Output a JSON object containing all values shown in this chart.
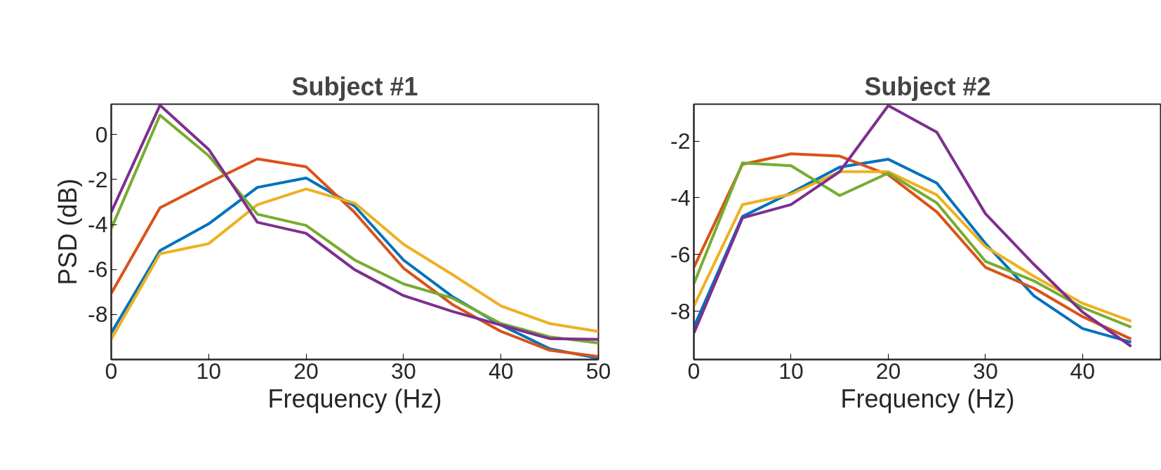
{
  "chart_data": [
    {
      "type": "line",
      "title": "Subject #1",
      "xlabel": "Frequency (Hz)",
      "ylabel": "PSD (dB)",
      "x": [
        0,
        5,
        10,
        15,
        20,
        25,
        30,
        35,
        40,
        45,
        50
      ],
      "xlim": [
        0,
        50
      ],
      "ylim": [
        -10,
        1.35
      ],
      "xticks": [
        0,
        10,
        20,
        30,
        40,
        50
      ],
      "yticks": [
        -8,
        -6,
        -4,
        -2,
        0
      ],
      "grid": false,
      "line_style": "solid",
      "marker": "none",
      "series": [
        {
          "color": "#0072bd",
          "values": [
            -8.82,
            -5.16,
            -3.97,
            -2.35,
            -1.93,
            -3.19,
            -5.58,
            -7.2,
            -8.47,
            -9.52,
            -9.95
          ]
        },
        {
          "color": "#d95319",
          "values": [
            -7.06,
            -3.26,
            -2.14,
            -1.08,
            -1.43,
            -3.47,
            -5.94,
            -7.55,
            -8.75,
            -9.59,
            -9.87
          ]
        },
        {
          "color": "#edb120",
          "values": [
            -9.1,
            -5.3,
            -4.85,
            -3.12,
            -2.42,
            -3.05,
            -4.88,
            -6.22,
            -7.62,
            -8.4,
            -8.75
          ]
        },
        {
          "color": "#77ac30",
          "values": [
            -4.18,
            0.86,
            -0.94,
            -3.54,
            -4.04,
            -5.58,
            -6.64,
            -7.27,
            -8.4,
            -8.99,
            -9.27
          ]
        },
        {
          "color": "#7e2f8e",
          "values": [
            -3.45,
            1.3,
            -0.66,
            -3.9,
            -4.39,
            -6.01,
            -7.16,
            -7.86,
            -8.47,
            -9.07,
            -9.1
          ]
        }
      ]
    },
    {
      "type": "line",
      "title": "Subject #2",
      "xlabel": "Frequency (Hz)",
      "x": [
        0,
        5,
        10,
        15,
        20,
        25,
        30,
        35,
        40,
        45
      ],
      "xlim": [
        0,
        48.1
      ],
      "ylim": [
        -9.7,
        -0.7
      ],
      "xticks": [
        0,
        10,
        20,
        30,
        40
      ],
      "yticks": [
        -8,
        -6,
        -4,
        -2
      ],
      "grid": false,
      "line_style": "solid",
      "marker": "none",
      "series": [
        {
          "color": "#0072bd",
          "values": [
            -8.56,
            -4.66,
            -3.82,
            -2.92,
            -2.64,
            -3.48,
            -5.61,
            -7.46,
            -8.61,
            -9.09
          ]
        },
        {
          "color": "#d95319",
          "values": [
            -6.45,
            -2.82,
            -2.45,
            -2.53,
            -3.19,
            -4.5,
            -6.45,
            -7.19,
            -8.19,
            -8.98
          ]
        },
        {
          "color": "#edb120",
          "values": [
            -7.82,
            -4.24,
            -3.87,
            -3.08,
            -3.08,
            -3.9,
            -5.72,
            -6.77,
            -7.72,
            -8.35
          ]
        },
        {
          "color": "#77ac30",
          "values": [
            -7.03,
            -2.77,
            -2.87,
            -3.92,
            -3.13,
            -4.18,
            -6.24,
            -6.93,
            -7.87,
            -8.56
          ]
        },
        {
          "color": "#7e2f8e",
          "values": [
            -8.77,
            -4.71,
            -4.24,
            -3.08,
            -0.75,
            -1.69,
            -4.56,
            -6.35,
            -8.03,
            -9.24
          ]
        }
      ]
    }
  ]
}
